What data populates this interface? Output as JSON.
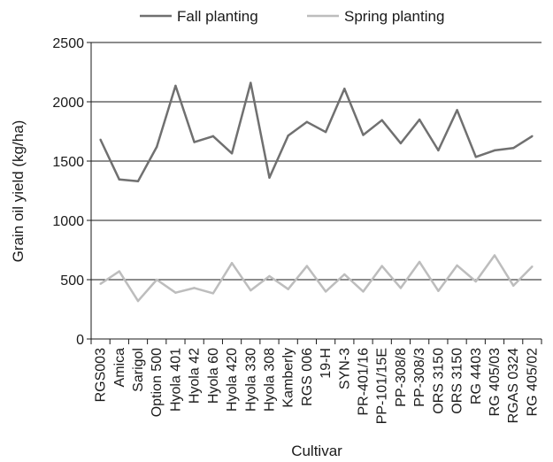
{
  "chart_data": {
    "type": "line",
    "title": "",
    "xlabel": "Cultivar",
    "ylabel": "Grain oil yield (kg/ha)",
    "ylim": [
      0,
      2500
    ],
    "yticks": [
      0,
      500,
      1000,
      1500,
      2000,
      2500
    ],
    "grid": "horizontal",
    "legend_position": "top",
    "categories": [
      "RGS003",
      "Amica",
      "Sarigol",
      "Option 500",
      "Hyola 401",
      "Hyola 42",
      "Hyola 60",
      "Hyola 420",
      "Hyola 330",
      "Hyola 308",
      "Kamberly",
      "RGS 006",
      "19-H",
      "SYN-3",
      "PR-401/16",
      "PP-101/15E",
      "PP-308/8",
      "PP-308/3",
      "ORS 3150",
      "ORS 3150",
      "RG 4403",
      "RG 405/03",
      "RGAS 0324",
      "RG 405/02"
    ],
    "series": [
      {
        "name": "Fall planting",
        "color": "#707070",
        "values": [
          1680,
          1345,
          1330,
          1620,
          2135,
          1660,
          1710,
          1565,
          2160,
          1360,
          1715,
          1830,
          1745,
          2110,
          1720,
          1845,
          1650,
          1850,
          1590,
          1930,
          1535,
          1590,
          1610,
          1710
        ]
      },
      {
        "name": "Spring planting",
        "color": "#bdbdbd",
        "values": [
          465,
          570,
          320,
          500,
          390,
          430,
          385,
          640,
          410,
          530,
          420,
          615,
          400,
          545,
          400,
          615,
          430,
          650,
          405,
          620,
          485,
          705,
          450,
          610
        ]
      }
    ]
  }
}
